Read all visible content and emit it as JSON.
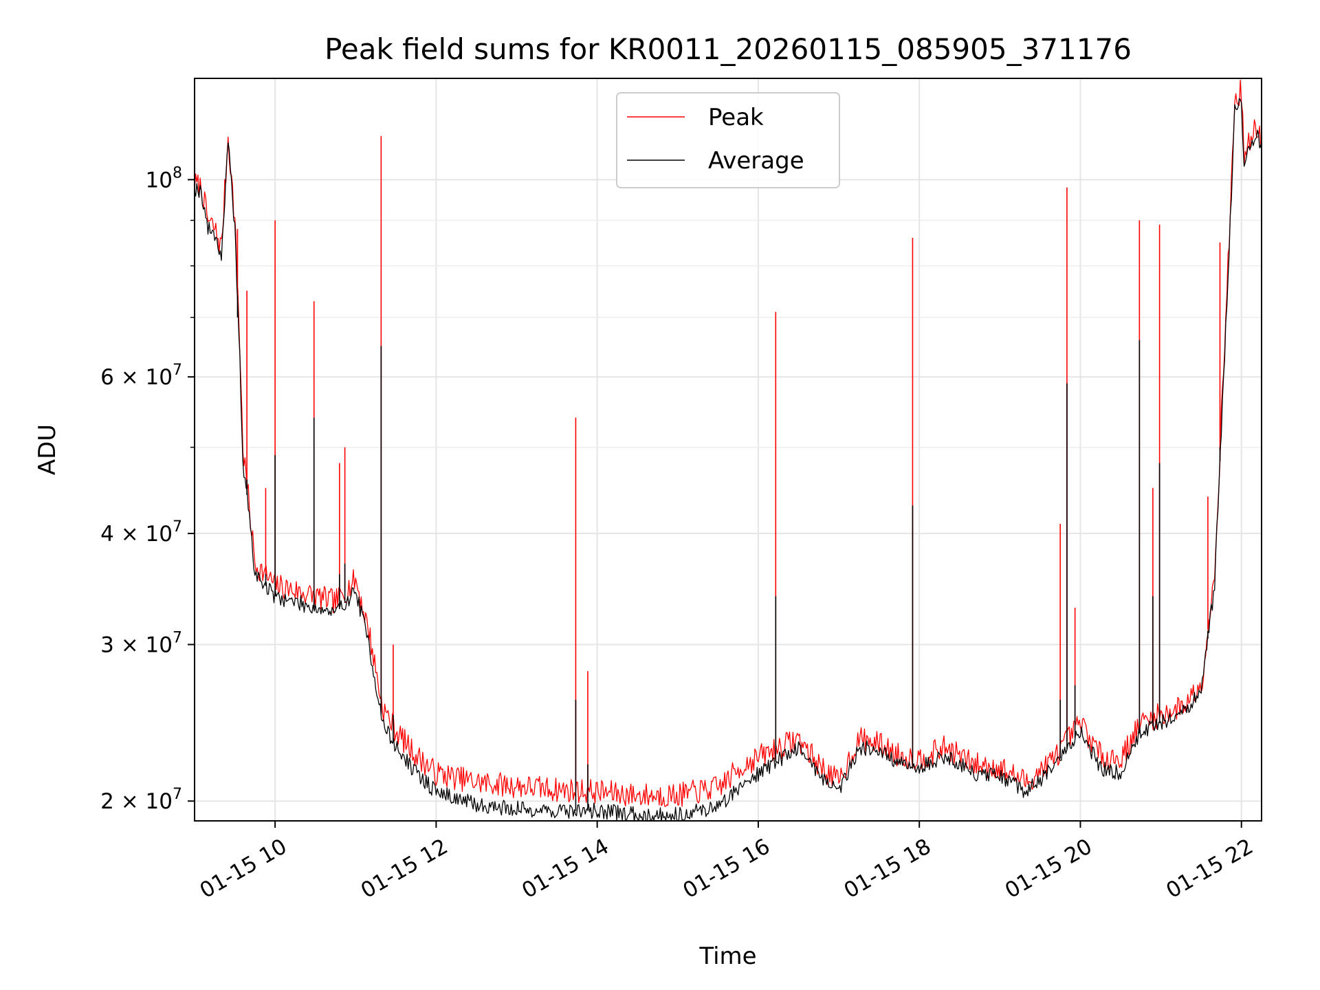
{
  "chart_data": {
    "type": "line",
    "title": "Peak field sums for KR0011_20260115_085905_371176",
    "xlabel": "Time",
    "ylabel": "ADU",
    "yscale": "log",
    "xlim": [
      "2026-01-15T09:00",
      "2026-01-15T22:15"
    ],
    "ylim": [
      19000000,
      130000000
    ],
    "grid": true,
    "legend_position": "upper-center",
    "x_ticks": [
      {
        "t": "2026-01-15T10:00",
        "label": "01-15 10"
      },
      {
        "t": "2026-01-15T12:00",
        "label": "01-15 12"
      },
      {
        "t": "2026-01-15T14:00",
        "label": "01-15 14"
      },
      {
        "t": "2026-01-15T16:00",
        "label": "01-15 16"
      },
      {
        "t": "2026-01-15T18:00",
        "label": "01-15 18"
      },
      {
        "t": "2026-01-15T20:00",
        "label": "01-15 20"
      },
      {
        "t": "2026-01-15T22:00",
        "label": "01-15 22"
      }
    ],
    "y_ticks": [
      {
        "value": 20000000,
        "coef": "2",
        "exp": "7"
      },
      {
        "value": 30000000,
        "coef": "3",
        "exp": "7"
      },
      {
        "value": 40000000,
        "coef": "4",
        "exp": "7"
      },
      {
        "value": 60000000,
        "coef": "6",
        "exp": "7"
      },
      {
        "value": 100000000,
        "coef": "",
        "exp": "8"
      }
    ],
    "y_minor_ticks": [
      50000000,
      70000000,
      80000000,
      90000000
    ],
    "series": [
      {
        "name": "Peak",
        "color": "#ff0000",
        "points": [
          [
            "2026-01-15T09:00",
            99000000
          ],
          [
            "2026-01-15T09:05",
            98000000
          ],
          [
            "2026-01-15T09:10",
            90000000
          ],
          [
            "2026-01-15T09:15",
            88000000
          ],
          [
            "2026-01-15T09:20",
            84000000
          ],
          [
            "2026-01-15T09:25",
            112000000
          ],
          [
            "2026-01-15T09:30",
            90000000
          ],
          [
            "2026-01-15T09:33",
            70000000
          ],
          [
            "2026-01-15T09:36",
            50000000
          ],
          [
            "2026-01-15T09:40",
            44000000
          ],
          [
            "2026-01-15T09:45",
            37000000
          ],
          [
            "2026-01-15T10:00",
            35000000
          ],
          [
            "2026-01-15T10:15",
            34500000
          ],
          [
            "2026-01-15T10:30",
            34000000
          ],
          [
            "2026-01-15T10:45",
            33500000
          ],
          [
            "2026-01-15T11:00",
            35500000
          ],
          [
            "2026-01-15T11:10",
            31000000
          ],
          [
            "2026-01-15T11:20",
            25500000
          ],
          [
            "2026-01-15T11:30",
            24000000
          ],
          [
            "2026-01-15T11:45",
            22500000
          ],
          [
            "2026-01-15T12:00",
            21500000
          ],
          [
            "2026-01-15T12:30",
            21000000
          ],
          [
            "2026-01-15T13:00",
            20800000
          ],
          [
            "2026-01-15T13:30",
            20600000
          ],
          [
            "2026-01-15T14:00",
            20500000
          ],
          [
            "2026-01-15T14:30",
            20300000
          ],
          [
            "2026-01-15T15:00",
            20300000
          ],
          [
            "2026-01-15T15:30",
            20700000
          ],
          [
            "2026-01-15T15:50",
            22000000
          ],
          [
            "2026-01-15T16:10",
            22800000
          ],
          [
            "2026-01-15T16:30",
            23500000
          ],
          [
            "2026-01-15T16:45",
            22000000
          ],
          [
            "2026-01-15T17:00",
            21000000
          ],
          [
            "2026-01-15T17:15",
            23500000
          ],
          [
            "2026-01-15T17:30",
            23200000
          ],
          [
            "2026-01-15T17:45",
            22500000
          ],
          [
            "2026-01-15T18:00",
            22300000
          ],
          [
            "2026-01-15T18:20",
            23000000
          ],
          [
            "2026-01-15T18:40",
            22000000
          ],
          [
            "2026-01-15T19:00",
            21800000
          ],
          [
            "2026-01-15T19:20",
            21000000
          ],
          [
            "2026-01-15T19:40",
            22300000
          ],
          [
            "2026-01-15T20:00",
            24500000
          ],
          [
            "2026-01-15T20:15",
            22500000
          ],
          [
            "2026-01-15T20:30",
            22300000
          ],
          [
            "2026-01-15T20:45",
            24500000
          ],
          [
            "2026-01-15T21:00",
            25000000
          ],
          [
            "2026-01-15T21:15",
            25500000
          ],
          [
            "2026-01-15T21:30",
            27000000
          ],
          [
            "2026-01-15T21:40",
            36000000
          ],
          [
            "2026-01-15T21:50",
            80000000
          ],
          [
            "2026-01-15T21:55",
            122000000
          ],
          [
            "2026-01-15T22:00",
            126000000
          ],
          [
            "2026-01-15T22:02",
            106000000
          ],
          [
            "2026-01-15T22:08",
            112000000
          ],
          [
            "2026-01-15T22:12",
            115000000
          ],
          [
            "2026-01-15T22:15",
            110000000
          ]
        ]
      },
      {
        "name": "Average",
        "color": "#000000",
        "points": [
          [
            "2026-01-15T09:00",
            98000000
          ],
          [
            "2026-01-15T09:05",
            97000000
          ],
          [
            "2026-01-15T09:10",
            88000000
          ],
          [
            "2026-01-15T09:15",
            87000000
          ],
          [
            "2026-01-15T09:20",
            82000000
          ],
          [
            "2026-01-15T09:25",
            110000000
          ],
          [
            "2026-01-15T09:30",
            88000000
          ],
          [
            "2026-01-15T09:33",
            68000000
          ],
          [
            "2026-01-15T09:36",
            48000000
          ],
          [
            "2026-01-15T09:40",
            43000000
          ],
          [
            "2026-01-15T09:45",
            36000000
          ],
          [
            "2026-01-15T10:00",
            34000000
          ],
          [
            "2026-01-15T10:15",
            33500000
          ],
          [
            "2026-01-15T10:30",
            33000000
          ],
          [
            "2026-01-15T10:45",
            32500000
          ],
          [
            "2026-01-15T11:00",
            34500000
          ],
          [
            "2026-01-15T11:10",
            30000000
          ],
          [
            "2026-01-15T11:20",
            24500000
          ],
          [
            "2026-01-15T11:30",
            23000000
          ],
          [
            "2026-01-15T11:45",
            21500000
          ],
          [
            "2026-01-15T12:00",
            20500000
          ],
          [
            "2026-01-15T12:30",
            19800000
          ],
          [
            "2026-01-15T13:00",
            19600000
          ],
          [
            "2026-01-15T13:30",
            19500000
          ],
          [
            "2026-01-15T14:00",
            19500000
          ],
          [
            "2026-01-15T14:30",
            19300000
          ],
          [
            "2026-01-15T15:00",
            19300000
          ],
          [
            "2026-01-15T15:30",
            19700000
          ],
          [
            "2026-01-15T15:50",
            21000000
          ],
          [
            "2026-01-15T16:10",
            22000000
          ],
          [
            "2026-01-15T16:30",
            23000000
          ],
          [
            "2026-01-15T16:45",
            21500000
          ],
          [
            "2026-01-15T17:00",
            20500000
          ],
          [
            "2026-01-15T17:15",
            23000000
          ],
          [
            "2026-01-15T17:30",
            22800000
          ],
          [
            "2026-01-15T17:45",
            22000000
          ],
          [
            "2026-01-15T18:00",
            21800000
          ],
          [
            "2026-01-15T18:20",
            22500000
          ],
          [
            "2026-01-15T18:40",
            21500000
          ],
          [
            "2026-01-15T19:00",
            21300000
          ],
          [
            "2026-01-15T19:20",
            20500000
          ],
          [
            "2026-01-15T19:40",
            21800000
          ],
          [
            "2026-01-15T20:00",
            24000000
          ],
          [
            "2026-01-15T20:15",
            21800000
          ],
          [
            "2026-01-15T20:30",
            21500000
          ],
          [
            "2026-01-15T20:45",
            24000000
          ],
          [
            "2026-01-15T21:00",
            24500000
          ],
          [
            "2026-01-15T21:15",
            25000000
          ],
          [
            "2026-01-15T21:30",
            26500000
          ],
          [
            "2026-01-15T21:40",
            35000000
          ],
          [
            "2026-01-15T21:50",
            78000000
          ],
          [
            "2026-01-15T21:55",
            120000000
          ],
          [
            "2026-01-15T22:00",
            122000000
          ],
          [
            "2026-01-15T22:02",
            104000000
          ],
          [
            "2026-01-15T22:08",
            110000000
          ],
          [
            "2026-01-15T22:12",
            113000000
          ],
          [
            "2026-01-15T22:15",
            108000000
          ]
        ]
      }
    ],
    "spikes": [
      {
        "t": "2026-01-15T09:32",
        "peak": 88000000,
        "average": 70000000
      },
      {
        "t": "2026-01-15T09:39",
        "peak": 75000000,
        "average": 46000000
      },
      {
        "t": "2026-01-15T09:53",
        "peak": 45000000,
        "average": 36000000
      },
      {
        "t": "2026-01-15T10:00",
        "peak": 90000000,
        "average": 49000000
      },
      {
        "t": "2026-01-15T10:29",
        "peak": 73000000,
        "average": 54000000
      },
      {
        "t": "2026-01-15T10:48",
        "peak": 48000000,
        "average": 36000000
      },
      {
        "t": "2026-01-15T10:52",
        "peak": 50000000,
        "average": 37000000
      },
      {
        "t": "2026-01-15T11:19",
        "peak": 112000000,
        "average": 65000000
      },
      {
        "t": "2026-01-15T11:28",
        "peak": 30000000,
        "average": 25000000
      },
      {
        "t": "2026-01-15T13:44",
        "peak": 54000000,
        "average": 26000000
      },
      {
        "t": "2026-01-15T13:53",
        "peak": 28000000,
        "average": 22000000
      },
      {
        "t": "2026-01-15T16:13",
        "peak": 71000000,
        "average": 34000000
      },
      {
        "t": "2026-01-15T17:55",
        "peak": 86000000,
        "average": 43000000
      },
      {
        "t": "2026-01-15T19:45",
        "peak": 41000000,
        "average": 26000000
      },
      {
        "t": "2026-01-15T19:50",
        "peak": 98000000,
        "average": 59000000
      },
      {
        "t": "2026-01-15T19:56",
        "peak": 33000000,
        "average": 27000000
      },
      {
        "t": "2026-01-15T20:44",
        "peak": 90000000,
        "average": 66000000
      },
      {
        "t": "2026-01-15T20:54",
        "peak": 45000000,
        "average": 34000000
      },
      {
        "t": "2026-01-15T20:59",
        "peak": 89000000,
        "average": 48000000
      },
      {
        "t": "2026-01-15T21:35",
        "peak": 44000000,
        "average": 31000000
      },
      {
        "t": "2026-01-15T21:44",
        "peak": 85000000,
        "average": 50000000
      }
    ]
  }
}
